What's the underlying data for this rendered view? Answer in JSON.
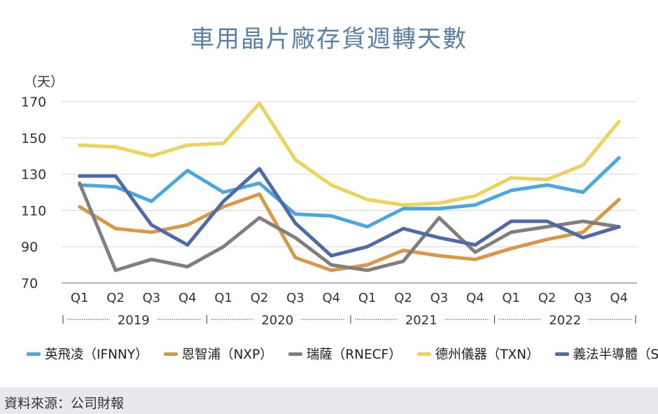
{
  "chart_data": {
    "type": "line",
    "title": "車用晶片廠存貨週轉天數",
    "ylabel": "（天）",
    "ylim": [
      70,
      170
    ],
    "yticks": [
      70,
      90,
      110,
      130,
      150,
      170
    ],
    "categories": [
      "Q1",
      "Q2",
      "Q3",
      "Q4",
      "Q1",
      "Q2",
      "Q3",
      "Q4",
      "Q1",
      "Q2",
      "Q3",
      "Q4",
      "Q1",
      "Q2",
      "Q3",
      "Q4"
    ],
    "years": [
      "2019",
      "2020",
      "2021",
      "2022"
    ],
    "series": [
      {
        "name": "英飛凌（IFNNY）",
        "color": "#4aa8dd",
        "values": [
          124,
          123,
          115,
          132,
          120,
          125,
          108,
          107,
          101,
          111,
          111,
          113,
          121,
          124,
          120,
          139
        ]
      },
      {
        "name": "恩智浦（NXP）",
        "color": "#d99848",
        "values": [
          112,
          100,
          98,
          102,
          112,
          119,
          84,
          77,
          80,
          88,
          85,
          83,
          89,
          94,
          98,
          116
        ]
      },
      {
        "name": "瑞薩（RNECF）",
        "color": "#7f7f7f",
        "values": [
          125,
          77,
          83,
          79,
          90,
          106,
          95,
          80,
          77,
          82,
          106,
          87,
          98,
          101,
          104,
          101
        ]
      },
      {
        "name": "德州儀器（TXN）",
        "color": "#ecd45c",
        "values": [
          146,
          145,
          140,
          146,
          147,
          169,
          138,
          124,
          116,
          113,
          114,
          118,
          128,
          127,
          135,
          159
        ]
      },
      {
        "name": "義法半導體（STM）",
        "color": "#4f6aa8",
        "values": [
          129,
          129,
          102,
          91,
          115,
          133,
          103,
          85,
          90,
          100,
          95,
          91,
          104,
          104,
          95,
          101
        ]
      }
    ]
  },
  "source": "資料來源：公司財報"
}
